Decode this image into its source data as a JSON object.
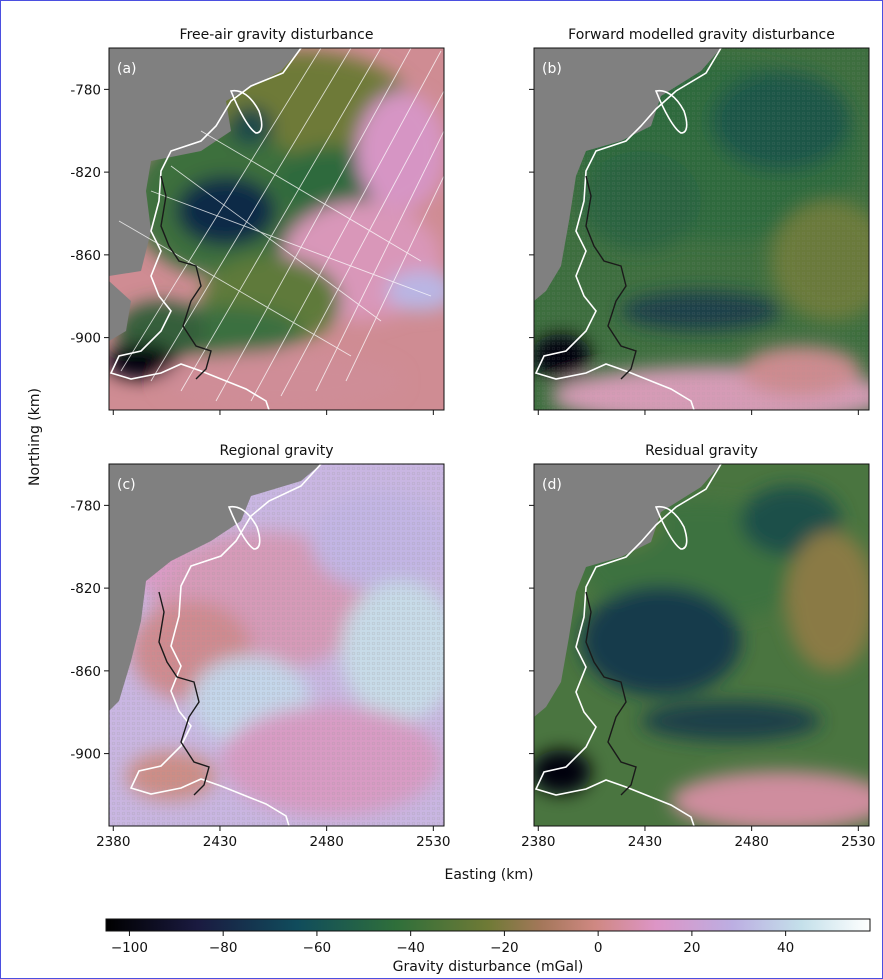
{
  "figure": {
    "xlabel": "Easting (km)",
    "ylabel": "Northing (km)",
    "colorbar": {
      "label": "Gravity disturbance (mGal)",
      "ticks": [
        "−100",
        "−80",
        "−60",
        "−40",
        "−20",
        "0",
        "20",
        "40"
      ],
      "range": [
        -105,
        58
      ],
      "colormap": "cubehelix-like (black → dark blue → green → brown → pink → light blue → white)"
    },
    "nodata_color": "#808080",
    "land_outline_color": "#ffffff",
    "grounding_line_color": "#1a1a1a"
  },
  "chart_data": [
    {
      "type": "heatmap",
      "panel": "(a)",
      "title": "Free-air gravity disturbance",
      "x_ticks": [
        "2380",
        "2430",
        "2480",
        "2530"
      ],
      "y_ticks": [
        "-780",
        "-820",
        "-860",
        "-900"
      ],
      "xlim": [
        2378,
        2535
      ],
      "ylim": [
        -935,
        -760
      ],
      "overlay": "survey flight lines (white)",
      "value_range": [
        -105,
        30
      ]
    },
    {
      "type": "heatmap",
      "panel": "(b)",
      "title": "Forward modelled gravity disturbance",
      "x_ticks": [
        "2380",
        "2430",
        "2480",
        "2530"
      ],
      "y_ticks": [
        "-780",
        "-820",
        "-860",
        "-900"
      ],
      "xlim": [
        2378,
        2535
      ],
      "ylim": [
        -935,
        -760
      ],
      "value_range": [
        -105,
        15
      ]
    },
    {
      "type": "heatmap",
      "panel": "(c)",
      "title": "Regional gravity",
      "x_ticks": [
        "2380",
        "2430",
        "2480",
        "2530"
      ],
      "y_ticks": [
        "-780",
        "-820",
        "-860",
        "-900"
      ],
      "xlim": [
        2378,
        2535
      ],
      "ylim": [
        -935,
        -760
      ],
      "overlay": "constraint points (grey circles)",
      "value_range": [
        -20,
        45
      ]
    },
    {
      "type": "heatmap",
      "panel": "(d)",
      "title": "Residual gravity",
      "x_ticks": [
        "2380",
        "2430",
        "2480",
        "2530"
      ],
      "y_ticks": [
        "-780",
        "-820",
        "-860",
        "-900"
      ],
      "xlim": [
        2378,
        2535
      ],
      "ylim": [
        -935,
        -760
      ],
      "value_range": [
        -105,
        10
      ]
    }
  ]
}
